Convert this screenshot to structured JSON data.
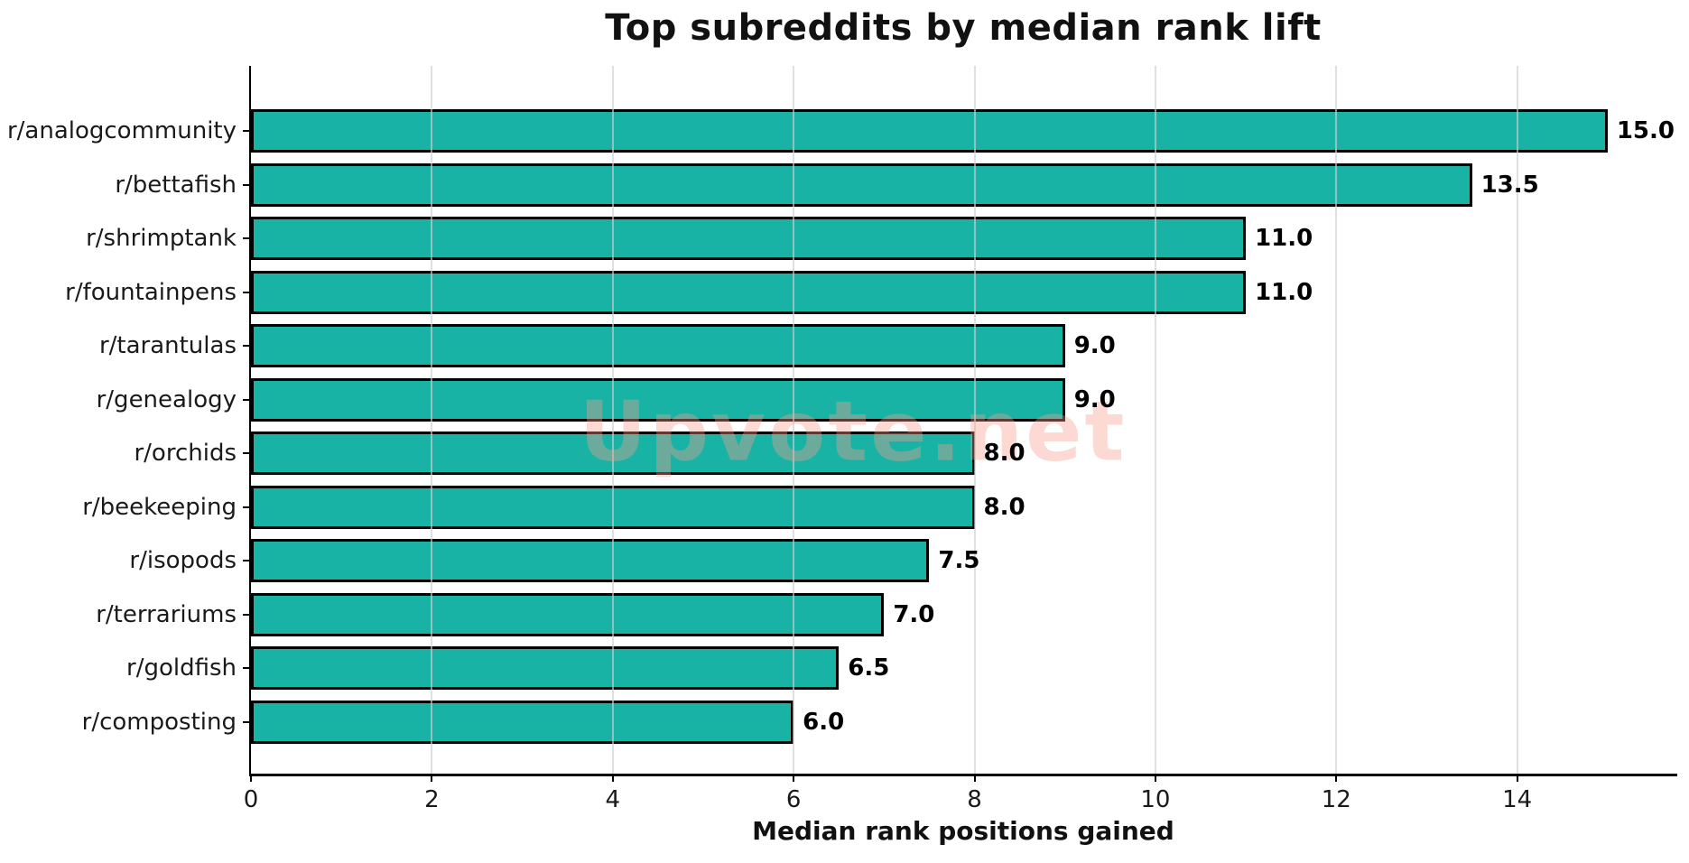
{
  "chart_data": {
    "type": "bar",
    "orientation": "horizontal",
    "title": "Top subreddits by median rank lift",
    "xlabel": "Median rank positions gained",
    "ylabel": "",
    "categories": [
      "r/analogcommunity",
      "r/bettafish",
      "r/shrimptank",
      "r/fountainpens",
      "r/tarantulas",
      "r/genealogy",
      "r/orchids",
      "r/beekeeping",
      "r/isopods",
      "r/terrariums",
      "r/goldfish",
      "r/composting"
    ],
    "values": [
      15.0,
      13.5,
      11.0,
      11.0,
      9.0,
      9.0,
      8.0,
      8.0,
      7.5,
      7.0,
      6.5,
      6.0
    ],
    "value_labels": [
      "15.0",
      "13.5",
      "11.0",
      "11.0",
      "9.0",
      "9.0",
      "8.0",
      "8.0",
      "7.5",
      "7.0",
      "6.5",
      "6.0"
    ],
    "xticks": [
      0,
      2,
      4,
      6,
      8,
      10,
      12,
      14
    ],
    "xlim": [
      0,
      15.75
    ],
    "grid": "vertical",
    "legend": "none",
    "bar_color": "#18b3a5",
    "bar_edge_color": "#000000",
    "watermark": "Upvote.net",
    "watermark_color": "#f69e8c"
  }
}
